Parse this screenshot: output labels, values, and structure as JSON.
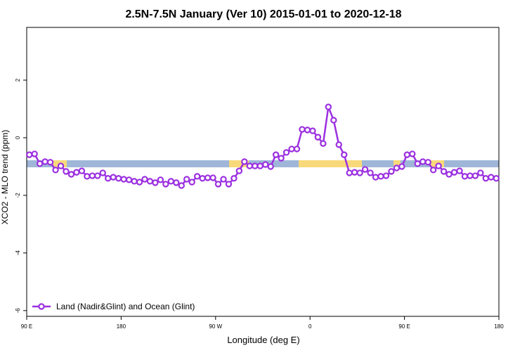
{
  "chart_data": {
    "type": "line",
    "title": "2.5N-7.5N January (Ver 10)   2015-01-01 to 2020-12-18",
    "x_label": "Longitude (deg E)",
    "y_label": "XCO2 - MLO trend (ppm)",
    "x": [
      92.5,
      97.5,
      102.5,
      107.5,
      112.5,
      117.5,
      122.5,
      127.5,
      132.5,
      137.5,
      142.5,
      147.5,
      152.5,
      157.5,
      162.5,
      167.5,
      172.5,
      177.5,
      182.5,
      187.5,
      192.5,
      197.5,
      202.5,
      207.5,
      212.5,
      217.5,
      222.5,
      227.5,
      232.5,
      237.5,
      242.5,
      247.5,
      252.5,
      257.5,
      262.5,
      267.5,
      272.5,
      277.5,
      282.5,
      287.5,
      292.5,
      297.5,
      302.5,
      307.5,
      312.5,
      317.5,
      322.5,
      327.5,
      332.5,
      337.5,
      342.5,
      347.5,
      352.5,
      357.5,
      362.5,
      367.5,
      372.5,
      377.5,
      382.5,
      387.5,
      392.5,
      397.5,
      402.5,
      407.5,
      412.5,
      417.5,
      422.5,
      427.5,
      432.5,
      437.5,
      442.5,
      447.5,
      452.5,
      457.5,
      462.5,
      467.5,
      472.5,
      477.5,
      482.5,
      487.5,
      492.5,
      497.5,
      502.5,
      507.5,
      512.5,
      517.5,
      522.5,
      527.5,
      532.5,
      537.5
    ],
    "series": [
      {
        "name": "Land (Nadir&Glint) and Ocean (Glint)",
        "color": "#9b30e0",
        "values": [
          -0.59,
          -0.56,
          -0.9,
          -0.83,
          -0.85,
          -1.12,
          -0.98,
          -1.17,
          -1.27,
          -1.2,
          -1.15,
          -1.34,
          -1.32,
          -1.32,
          -1.22,
          -1.41,
          -1.37,
          -1.41,
          -1.44,
          -1.46,
          -1.51,
          -1.54,
          -1.44,
          -1.51,
          -1.56,
          -1.46,
          -1.61,
          -1.51,
          -1.56,
          -1.66,
          -1.44,
          -1.54,
          -1.34,
          -1.41,
          -1.39,
          -1.39,
          -1.61,
          -1.44,
          -1.61,
          -1.41,
          -1.15,
          -0.83,
          -0.98,
          -0.98,
          -0.98,
          -0.93,
          -1.0,
          -0.59,
          -0.71,
          -0.51,
          -0.39,
          -0.39,
          0.29,
          0.27,
          0.24,
          0.02,
          -0.2,
          1.07,
          0.61,
          -0.24,
          -0.59,
          -1.22,
          -1.2,
          -1.22,
          -1.1,
          -1.22,
          -1.37,
          -1.34,
          -1.32,
          -1.17,
          -1.05,
          -1.0,
          -0.59,
          -0.56,
          -0.9,
          -0.83,
          -0.85,
          -1.12,
          -0.98,
          -1.17,
          -1.27,
          -1.2,
          -1.15,
          -1.34,
          -1.32,
          -1.32,
          -1.22,
          -1.41,
          -1.37,
          -1.41
        ]
      }
    ],
    "xlim": [
      90,
      540
    ],
    "xticks": [
      {
        "value": 90,
        "label": "90 E"
      },
      180,
      {
        "value": 270,
        "label": "90 W"
      },
      {
        "value": 360,
        "label": "0"
      },
      {
        "value": 450,
        "label": "90 E"
      },
      {
        "value": 540,
        "label": "180"
      }
    ],
    "ylim": [
      -6.2,
      3.83
    ],
    "yticks": [
      -6,
      -4,
      -2,
      0,
      2
    ],
    "legend": "bottom-left"
  }
}
